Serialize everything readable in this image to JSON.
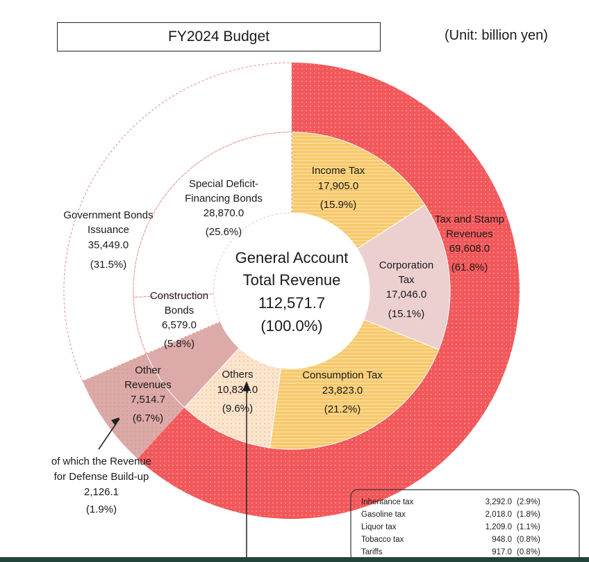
{
  "header": {
    "title": "FY2024 Budget",
    "unit": "(Unit: billion yen)"
  },
  "center": {
    "line1": "General Account",
    "line2": "Total Revenue",
    "value": "112,571.7",
    "pct": "(100.0%)"
  },
  "labels": {
    "income_tax": {
      "l1": "Income Tax",
      "l2": "17,905.0",
      "l3": "(15.9%)"
    },
    "corporation_tax": {
      "l1": "Corporation",
      "l2": "Tax",
      "l3": "17,046.0",
      "l4": "(15.1%)"
    },
    "consumption_tax": {
      "l1": "Consumption Tax",
      "l2": "23,823.0",
      "l3": "(21.2%)"
    },
    "others": {
      "l1": "Others",
      "l2": "10,834.0",
      "l3": "(9.6%)"
    },
    "construction_bonds": {
      "l1": "Construction",
      "l2": "Bonds",
      "l3": "6,579.0",
      "l4": "(5.8%)"
    },
    "special_deficit": {
      "l1": "Special Deficit-",
      "l2": "Financing Bonds",
      "l3": "28,870.0",
      "l4": "(25.6%)"
    },
    "tax_stamp": {
      "l1": "Tax and Stamp",
      "l2": "Revenues",
      "l3": "69,608.0",
      "l4": "(61.8%)"
    },
    "gov_bonds": {
      "l1": "Government Bonds",
      "l2": "Issuance",
      "l3": "35,449.0",
      "l4": "(31.5%)"
    },
    "other_revenues": {
      "l1": "Other",
      "l2": "Revenues",
      "l3": "7,514.7",
      "l4": "(6.7%)"
    },
    "defense": {
      "l1": "of which the Revenue",
      "l2": "for Defense Build-up",
      "l3": "2,126.1",
      "l4": "(1.9%)"
    }
  },
  "others_breakdown": [
    {
      "name": "Inheritance tax",
      "value": "3,292.0",
      "pct": "(2.9%)"
    },
    {
      "name": "Gasoline tax",
      "value": "2,018.0",
      "pct": "(1.8%)"
    },
    {
      "name": "Liquor tax",
      "value": "1,209.0",
      "pct": "(1.1%)"
    },
    {
      "name": "Tobacco tax",
      "value": "948.0",
      "pct": "(0.8%)"
    },
    {
      "name": "Tariffs",
      "value": "917.0",
      "pct": "(0.8%)"
    }
  ],
  "colors": {
    "tax_outer": "#f2585a",
    "tax_inner_major": "#f7c86b",
    "corporation": "#ecd0d0",
    "others_inner": "#fbe4cc",
    "other_revenues": "#dcaaa8",
    "bonds": "#ffffff",
    "dash": "#e59a8e",
    "bottom_bar": "#23443a"
  },
  "chart_data": {
    "type": "pie",
    "title": "FY2024 Budget",
    "unit": "billion yen",
    "total": 112571.7,
    "outer_ring": [
      {
        "name": "Tax and Stamp Revenues",
        "value": 69608.0,
        "pct": 61.8
      },
      {
        "name": "Other Revenues",
        "value": 7514.7,
        "pct": 6.7
      },
      {
        "name": "Government Bonds Issuance",
        "value": 35449.0,
        "pct": 31.5
      }
    ],
    "inner_ring": [
      {
        "name": "Income Tax",
        "value": 17905.0,
        "pct": 15.9
      },
      {
        "name": "Corporation Tax",
        "value": 17046.0,
        "pct": 15.1
      },
      {
        "name": "Consumption Tax",
        "value": 23823.0,
        "pct": 21.2
      },
      {
        "name": "Others",
        "value": 10834.0,
        "pct": 9.6
      },
      {
        "name": "Other Revenues",
        "value": 7514.7,
        "pct": 6.7
      },
      {
        "name": "Construction Bonds",
        "value": 6579.0,
        "pct": 5.8
      },
      {
        "name": "Special Deficit-Financing Bonds",
        "value": 28870.0,
        "pct": 25.6
      }
    ],
    "annotation": {
      "name": "of which the Revenue for Defense Build-up",
      "value": 2126.1,
      "pct": 1.9
    },
    "others_breakdown": [
      {
        "name": "Inheritance tax",
        "value": 3292.0,
        "pct": 2.9
      },
      {
        "name": "Gasoline tax",
        "value": 2018.0,
        "pct": 1.8
      },
      {
        "name": "Liquor tax",
        "value": 1209.0,
        "pct": 1.1
      },
      {
        "name": "Tobacco tax",
        "value": 948.0,
        "pct": 0.8
      },
      {
        "name": "Tariffs",
        "value": 917.0,
        "pct": 0.8
      }
    ]
  }
}
